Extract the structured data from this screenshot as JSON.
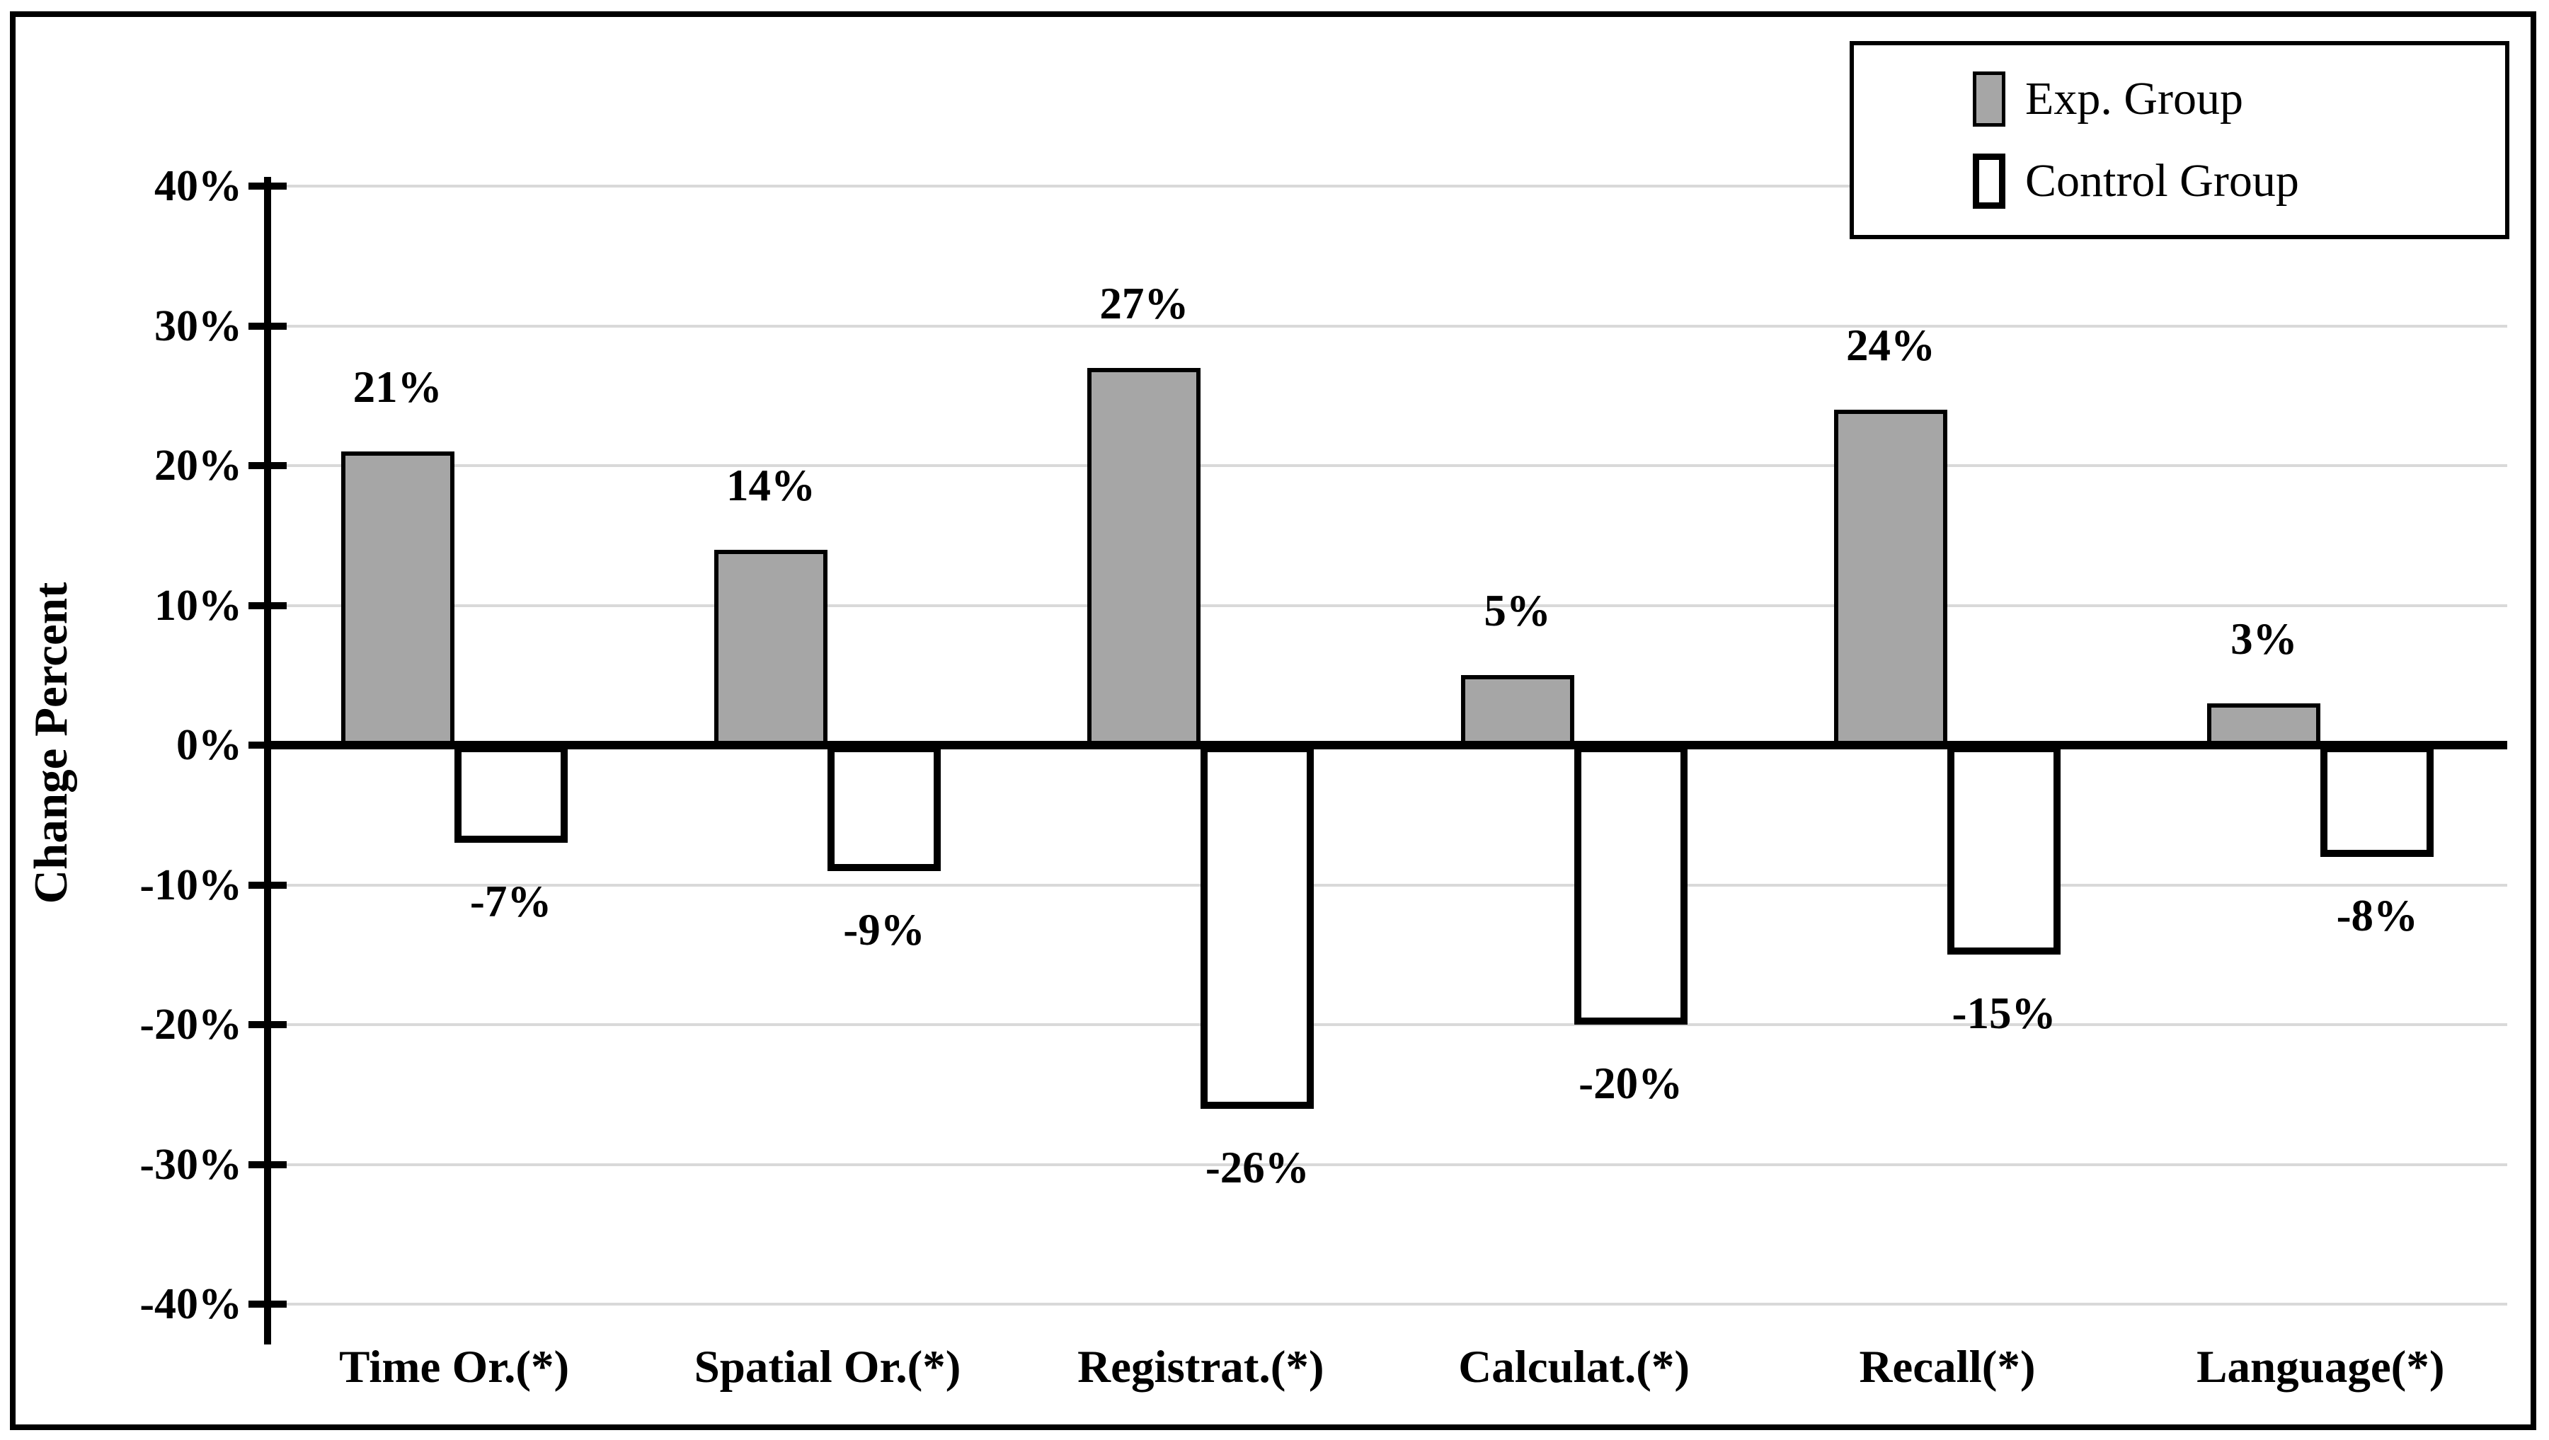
{
  "chart_data": {
    "type": "bar",
    "title": "",
    "ylabel": "Change Percent",
    "xlabel": "",
    "categories": [
      "Time Or.(*)",
      "Spatial Or.(*)",
      "Registrat.(*)",
      "Calculat.(*)",
      "Recall(*)",
      "Language(*)"
    ],
    "series": [
      {
        "name": "Exp. Group",
        "values": [
          21,
          14,
          27,
          5,
          24,
          3
        ],
        "data_labels": [
          "21%",
          "14%",
          "27%",
          "5%",
          "24%",
          "3%"
        ],
        "fill": "#A6A6A6"
      },
      {
        "name": "Control Group",
        "values": [
          -7,
          -9,
          -26,
          -20,
          -15,
          -8
        ],
        "data_labels": [
          "-7%",
          "-9%",
          "-26%",
          "-20%",
          "-15%",
          "-8%"
        ],
        "fill": "#FFFFFF"
      }
    ],
    "y_ticks": [
      {
        "value": 40,
        "label": "40%"
      },
      {
        "value": 30,
        "label": "30%"
      },
      {
        "value": 20,
        "label": "20%"
      },
      {
        "value": 10,
        "label": "10%"
      },
      {
        "value": 0,
        "label": "0%"
      },
      {
        "value": -10,
        "label": "-10%"
      },
      {
        "value": -20,
        "label": "-20%"
      },
      {
        "value": -30,
        "label": "-30%"
      },
      {
        "value": -40,
        "label": "-40%"
      }
    ],
    "ylim": [
      -40,
      40
    ],
    "grid": true,
    "legend_position": "top-right",
    "colors": {
      "exp_bar_fill": "#A6A6A6",
      "control_bar_fill": "#FFFFFF",
      "bar_border": "#000000",
      "axis": "#000000",
      "gridline": "#D9D9D9",
      "text": "#000000",
      "background": "#FFFFFF"
    }
  },
  "legend": {
    "items": [
      {
        "label": "Exp. Group",
        "swatch": "gray-filled-square"
      },
      {
        "label": "Control Group",
        "swatch": "white-square"
      }
    ]
  }
}
